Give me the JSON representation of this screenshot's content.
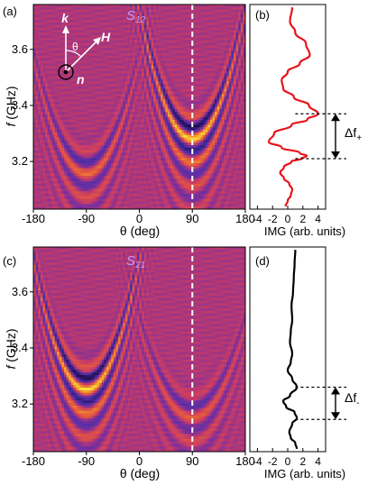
{
  "chart_data": [
    {
      "panel": "(a)",
      "type": "heatmap",
      "title": "S12",
      "title_main": "S",
      "title_sub": "12",
      "xlabel": "θ (deg)",
      "ylabel": "f (GHz)",
      "ylabel_main": "f",
      "ylabel_unit": " (GHz)",
      "xlim": [
        -180,
        180
      ],
      "ylim": [
        3.03,
        3.76
      ],
      "x_ticks": [
        "-180",
        "-90",
        "0",
        "90",
        "180"
      ],
      "x_tick_values": [
        -180,
        -90,
        0,
        90,
        180
      ],
      "y_ticks": [
        "3.2",
        "3.4",
        "3.6"
      ],
      "y_tick_values": [
        3.2,
        3.4,
        3.6
      ],
      "marker_line_x": 90,
      "colormap": [
        "#0a0612",
        "#2c1568",
        "#4b2fa8",
        "#7d2f9b",
        "#c83c66",
        "#e65a3c",
        "#f3a12c",
        "#ffff44"
      ],
      "bands": [
        {
          "center": 90,
          "f0": 3.28,
          "curvature": 5.6e-05,
          "strength": 1.0
        },
        {
          "center": -90,
          "f0": 3.155,
          "curvature": 5e-05,
          "strength": 0.55
        }
      ],
      "inset": {
        "k": "k",
        "H": "H",
        "theta": "θ",
        "n": "n"
      }
    },
    {
      "panel": "(b)",
      "type": "line",
      "xlabel": "IMG (arb. units)",
      "xlim": [
        -5,
        5
      ],
      "ylim": [
        3.03,
        3.76
      ],
      "x_ticks": [
        "-4",
        "-2",
        "0",
        "2",
        "4"
      ],
      "x_tick_values": [
        -4,
        -2,
        0,
        2,
        4
      ],
      "line_color": "#e8141b",
      "x": [
        -0.3,
        0.0,
        0.4,
        0.6,
        0.2,
        -0.5,
        -1.0,
        -0.5,
        0.5,
        1.8,
        2.5,
        1.6,
        -0.8,
        -2.5,
        -1.8,
        0.5,
        2.6,
        4.0,
        2.8,
        0.8,
        -0.6,
        -0.8,
        0.0,
        1.6,
        2.9,
        2.4,
        1.0,
        0.3,
        0.6
      ],
      "y": [
        3.04,
        3.06,
        3.08,
        3.1,
        3.12,
        3.14,
        3.16,
        3.18,
        3.2,
        3.21,
        3.22,
        3.23,
        3.25,
        3.27,
        3.3,
        3.33,
        3.35,
        3.37,
        3.4,
        3.43,
        3.46,
        3.49,
        3.52,
        3.55,
        3.58,
        3.62,
        3.66,
        3.7,
        3.75
      ],
      "delta_f": {
        "main": "Δf",
        "sub": "+"
      },
      "delta_lines_f": [
        3.21,
        3.37
      ]
    },
    {
      "panel": "(c)",
      "type": "heatmap",
      "title": "S21",
      "title_main": "S",
      "title_sub": "21",
      "xlabel": "θ (deg)",
      "ylabel": "f (GHz)",
      "ylabel_main": "f",
      "ylabel_unit": " (GHz)",
      "xlim": [
        -180,
        180
      ],
      "ylim": [
        3.03,
        3.76
      ],
      "x_ticks": [
        "-180",
        "-90",
        "0",
        "90",
        "180"
      ],
      "x_tick_values": [
        -180,
        -90,
        0,
        90,
        180
      ],
      "y_ticks": [
        "3.2",
        "3.4",
        "3.6"
      ],
      "y_tick_values": [
        3.2,
        3.4,
        3.6
      ],
      "marker_line_x": 90,
      "bands": [
        {
          "center": -90,
          "f0": 3.25,
          "curvature": 5.6e-05,
          "strength": 1.0
        },
        {
          "center": 90,
          "f0": 3.15,
          "curvature": 4e-05,
          "strength": 0.45
        }
      ]
    },
    {
      "panel": "(d)",
      "type": "line",
      "xlabel": "IMG (arb. units)",
      "xlim": [
        -5,
        5
      ],
      "ylim": [
        3.03,
        3.76
      ],
      "x_ticks": [
        "-4",
        "-2",
        "0",
        "2",
        "4"
      ],
      "x_tick_values": [
        -4,
        -2,
        0,
        2,
        4
      ],
      "line_color": "#000000",
      "x": [
        1.2,
        1.0,
        0.4,
        0.2,
        0.6,
        1.2,
        0.9,
        -0.2,
        -0.6,
        0.3,
        1.2,
        0.6,
        0.0,
        0.4,
        0.6,
        0.3,
        0.4,
        0.6,
        0.5,
        0.7,
        0.8,
        0.9,
        1.0
      ],
      "y": [
        3.04,
        3.06,
        3.08,
        3.1,
        3.13,
        3.15,
        3.17,
        3.19,
        3.21,
        3.23,
        3.26,
        3.29,
        3.32,
        3.35,
        3.38,
        3.42,
        3.46,
        3.5,
        3.55,
        3.6,
        3.65,
        3.7,
        3.75
      ],
      "delta_f": {
        "main": "Δf",
        "sub": "-"
      },
      "delta_lines_f": [
        3.145,
        3.26
      ]
    }
  ]
}
